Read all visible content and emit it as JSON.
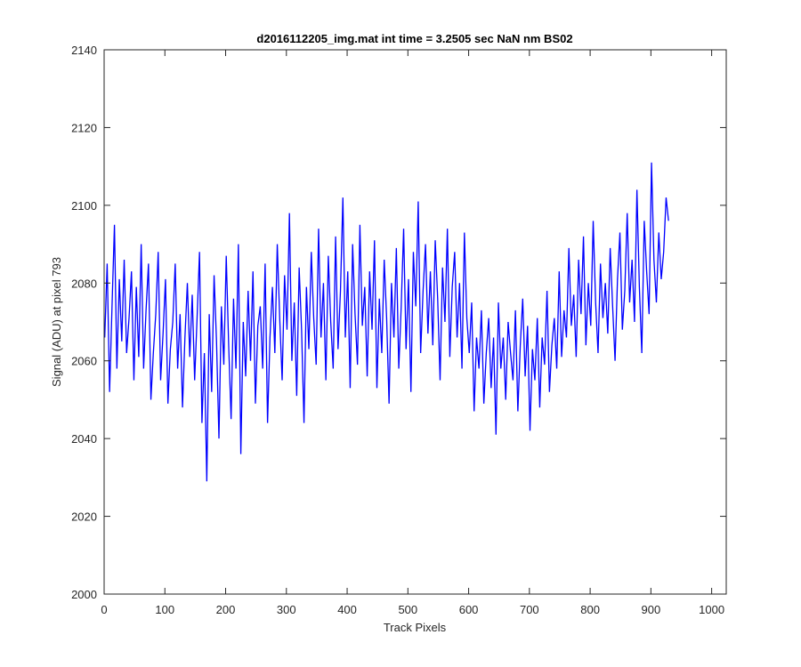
{
  "chart_data": {
    "type": "line",
    "title": "d2016112205_img.mat int time = 3.2505 sec  NaN nm BS02",
    "xlabel": "Track Pixels",
    "ylabel": "Signal (ADU) at pixel 793",
    "xlim": [
      0,
      1024
    ],
    "ylim": [
      2000,
      2140
    ],
    "xticks": [
      0,
      100,
      200,
      300,
      400,
      500,
      600,
      700,
      800,
      900,
      1000
    ],
    "yticks": [
      2000,
      2020,
      2040,
      2060,
      2080,
      2100,
      2120,
      2140
    ],
    "xtick_labels": [
      "0",
      "100",
      "200",
      "300",
      "400",
      "500",
      "600",
      "700",
      "800",
      "900",
      "1000"
    ],
    "ytick_labels": [
      "2000",
      "2020",
      "2040",
      "2060",
      "2080",
      "2100",
      "2120",
      "2140"
    ],
    "grid": false,
    "series": [
      {
        "color": "#0000ff",
        "x_start": 1,
        "x_step": 4,
        "values": [
          2066,
          2085,
          2052,
          2074,
          2095,
          2058,
          2081,
          2065,
          2086,
          2062,
          2071,
          2083,
          2055,
          2079,
          2061,
          2090,
          2058,
          2073,
          2085,
          2050,
          2062,
          2072,
          2088,
          2055,
          2067,
          2081,
          2049,
          2063,
          2070,
          2085,
          2058,
          2072,
          2048,
          2066,
          2080,
          2061,
          2077,
          2055,
          2071,
          2088,
          2044,
          2062,
          2029,
          2072,
          2052,
          2082,
          2065,
          2040,
          2074,
          2059,
          2087,
          2064,
          2045,
          2076,
          2058,
          2090,
          2036,
          2070,
          2056,
          2078,
          2060,
          2083,
          2049,
          2069,
          2074,
          2058,
          2085,
          2044,
          2066,
          2079,
          2062,
          2090,
          2071,
          2055,
          2082,
          2068,
          2098,
          2060,
          2075,
          2051,
          2084,
          2068,
          2044,
          2079,
          2063,
          2088,
          2071,
          2059,
          2094,
          2066,
          2080,
          2055,
          2087,
          2070,
          2058,
          2092,
          2063,
          2078,
          2102,
          2066,
          2083,
          2053,
          2090,
          2072,
          2059,
          2095,
          2069,
          2079,
          2056,
          2083,
          2068,
          2091,
          2053,
          2076,
          2062,
          2086,
          2071,
          2049,
          2080,
          2066,
          2089,
          2058,
          2074,
          2094,
          2063,
          2081,
          2052,
          2088,
          2074,
          2101,
          2062,
          2078,
          2090,
          2067,
          2083,
          2064,
          2091,
          2076,
          2055,
          2084,
          2070,
          2094,
          2061,
          2079,
          2088,
          2066,
          2080,
          2058,
          2093,
          2071,
          2062,
          2075,
          2047,
          2066,
          2058,
          2073,
          2049,
          2062,
          2071,
          2053,
          2066,
          2041,
          2075,
          2058,
          2066,
          2050,
          2070,
          2062,
          2055,
          2073,
          2047,
          2064,
          2076,
          2056,
          2069,
          2042,
          2063,
          2055,
          2071,
          2048,
          2066,
          2059,
          2078,
          2052,
          2064,
          2071,
          2058,
          2083,
          2061,
          2073,
          2066,
          2089,
          2069,
          2077,
          2061,
          2086,
          2072,
          2092,
          2064,
          2080,
          2069,
          2096,
          2075,
          2062,
          2085,
          2071,
          2080,
          2067,
          2089,
          2074,
          2060,
          2081,
          2093,
          2068,
          2078,
          2098,
          2075,
          2086,
          2070,
          2104,
          2079,
          2062,
          2096,
          2083,
          2072,
          2111,
          2086,
          2075,
          2093,
          2081,
          2088,
          2102,
          2096
        ]
      }
    ]
  }
}
